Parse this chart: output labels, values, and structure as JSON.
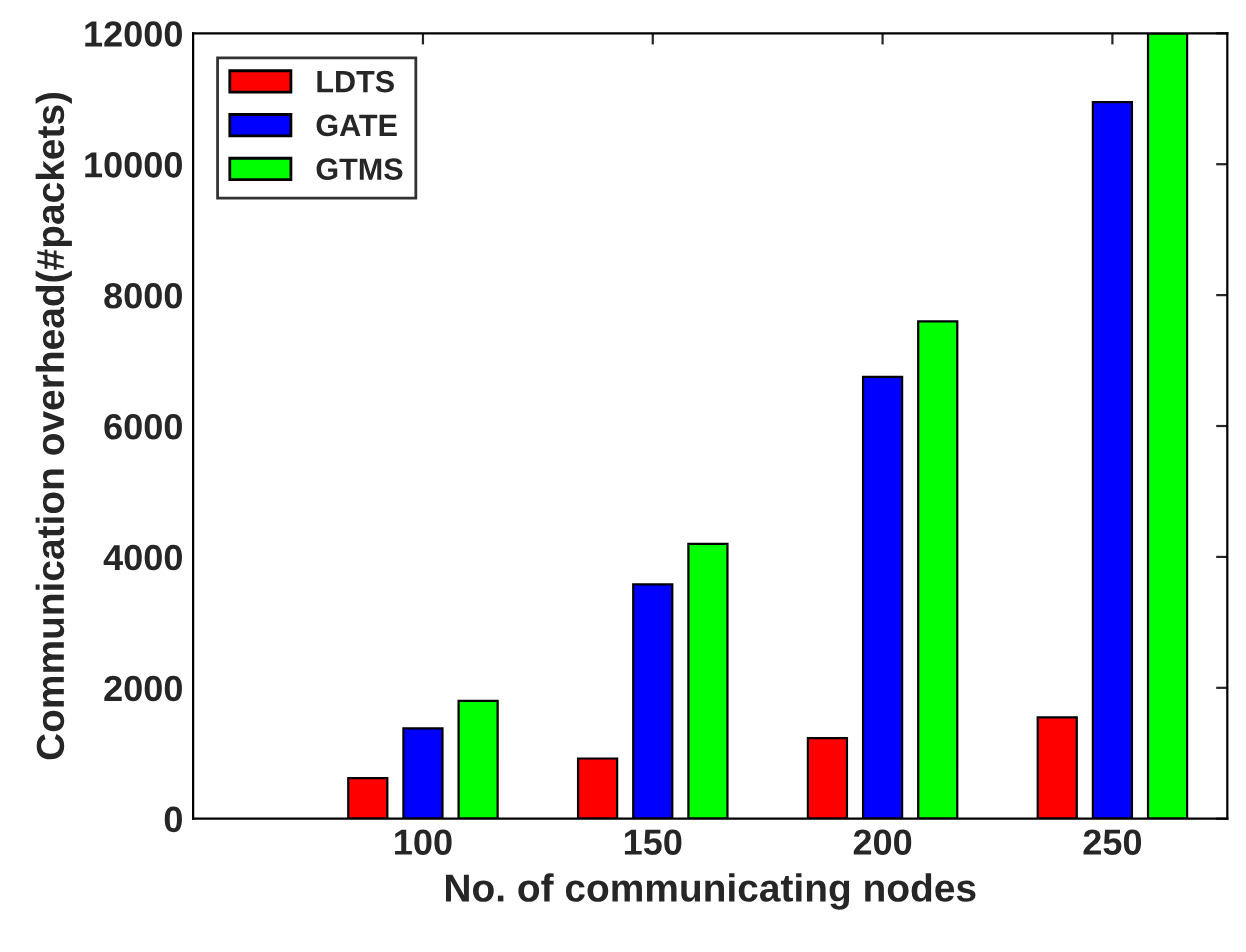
{
  "chart_data": {
    "type": "bar",
    "xlabel": "No. of communicating nodes",
    "ylabel": "Communication overhead(#packets)",
    "categories": [
      "100",
      "150",
      "200",
      "250"
    ],
    "series": [
      {
        "name": "LDTS",
        "color": "#ff0000",
        "values": [
          620,
          920,
          1230,
          1550
        ]
      },
      {
        "name": "GATE",
        "color": "#0000ff",
        "values": [
          1380,
          3580,
          6750,
          10950
        ]
      },
      {
        "name": "GTMS",
        "color": "#00ff00",
        "values": [
          1800,
          4200,
          7600,
          12000
        ]
      }
    ],
    "ylim": [
      0,
      12000
    ],
    "yticks": [
      0,
      2000,
      4000,
      6000,
      8000,
      10000,
      12000
    ],
    "grid": false,
    "legend": "top left"
  }
}
